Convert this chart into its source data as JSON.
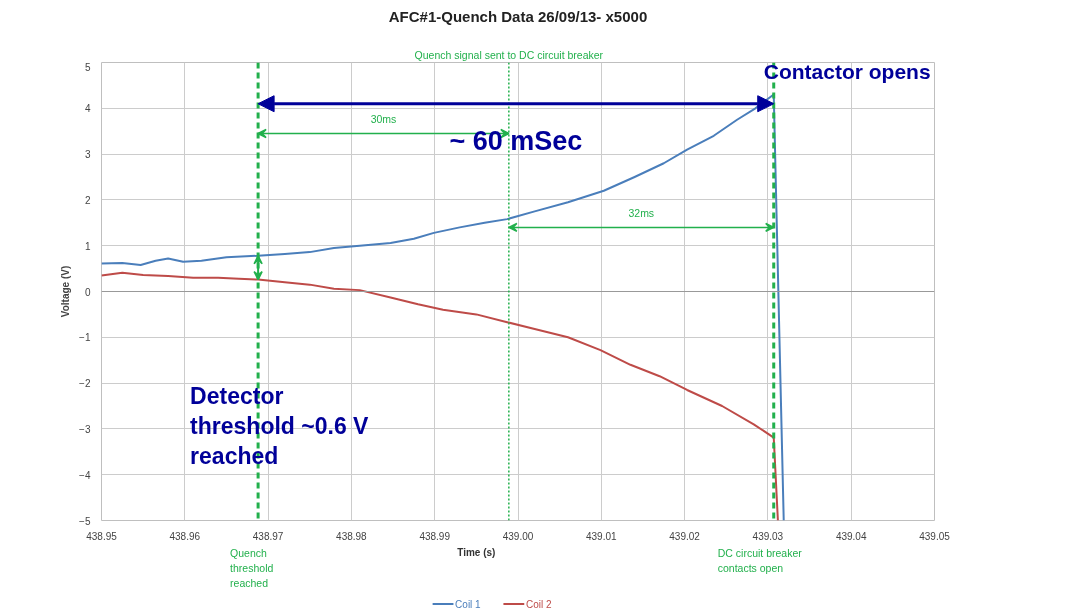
{
  "chart_data": {
    "type": "line",
    "title": "AFC#1-Quench Data 26/09/13- x5000",
    "xlabel": "Time (s)",
    "ylabel": "Voltage (V)",
    "xlim": [
      438.95,
      439.05
    ],
    "xticks": [
      {
        "value": 438.95,
        "label": "438.95"
      },
      {
        "value": 438.96,
        "label": "438.96"
      },
      {
        "value": 438.97,
        "label": "438.97"
      },
      {
        "value": 438.98,
        "label": "438.98"
      },
      {
        "value": 438.99,
        "label": "438.99"
      },
      {
        "value": 439.0,
        "label": "439.00"
      },
      {
        "value": 439.01,
        "label": "439.01"
      },
      {
        "value": 439.02,
        "label": "439.02"
      },
      {
        "value": 439.03,
        "label": "439.03"
      },
      {
        "value": 439.04,
        "label": "439.04"
      },
      {
        "value": 439.05,
        "label": "439.05"
      }
    ],
    "ylim": [
      -5,
      5
    ],
    "yticks": [
      -5,
      -4,
      -3,
      -2,
      -1,
      0,
      1,
      2,
      3,
      4,
      5
    ],
    "grid": true,
    "legend": "bottom",
    "marker": "none",
    "line_style": "solid",
    "series": [
      {
        "name": "Coil 1",
        "color": "#4a7ebb",
        "x": [
          438.95,
          438.9525,
          438.9547,
          438.9565,
          438.958,
          438.9598,
          438.962,
          438.965,
          438.9688,
          438.972,
          438.975,
          438.9779,
          438.981,
          438.9847,
          438.9875,
          438.9899,
          438.993,
          438.996,
          438.9987,
          439.002,
          439.006,
          439.0103,
          439.014,
          439.0175,
          439.0203,
          439.0235,
          439.0263,
          439.0285,
          439.0307,
          439.0319
        ],
        "values": [
          0.61,
          0.62,
          0.58,
          0.67,
          0.72,
          0.65,
          0.67,
          0.75,
          0.78,
          0.82,
          0.86,
          0.95,
          1.0,
          1.06,
          1.15,
          1.28,
          1.4,
          1.5,
          1.58,
          1.75,
          1.95,
          2.2,
          2.5,
          2.8,
          3.1,
          3.4,
          3.75,
          4.0,
          4.3,
          -5
        ]
      },
      {
        "name": "Coil 2",
        "color": "#be4b48",
        "x": [
          438.95,
          438.9525,
          438.955,
          438.958,
          438.961,
          438.964,
          438.9665,
          438.9688,
          438.972,
          438.975,
          438.9779,
          438.981,
          438.9847,
          438.988,
          438.991,
          438.995,
          438.9987,
          439.002,
          439.006,
          439.0099,
          439.0135,
          439.017,
          439.0203,
          439.0245,
          439.0283,
          439.0307,
          439.0312
        ],
        "values": [
          0.35,
          0.41,
          0.36,
          0.34,
          0.3,
          0.3,
          0.28,
          0.26,
          0.2,
          0.15,
          0.06,
          0.03,
          -0.13,
          -0.28,
          -0.4,
          -0.5,
          -0.67,
          -0.82,
          -1.0,
          -1.28,
          -1.6,
          -1.85,
          -2.15,
          -2.5,
          -2.9,
          -3.19,
          -5
        ]
      }
    ],
    "ref_lines": [
      {
        "axis": "x",
        "value": 438.9688,
        "label": "Quench\nthreshold\nreached",
        "color": "#22b04c",
        "line_style": "dashed"
      },
      {
        "axis": "x",
        "value": 438.9989,
        "label": "Quench signal sent to DC circuit breaker",
        "color": "#22b04c",
        "line_style": "dotted"
      },
      {
        "axis": "x",
        "value": 439.0307,
        "label": "DC circuit breaker\ncontacts open",
        "color": "#22b04c",
        "line_style": "dashed"
      }
    ],
    "annotations": [
      "30ms",
      "32ms",
      "~ 60 mSec",
      {
        "text": "Contactor opens",
        "x": 439.0307,
        "y": 4.3
      },
      "Detector\nthreshold ~0.6 V\nreached"
    ]
  }
}
